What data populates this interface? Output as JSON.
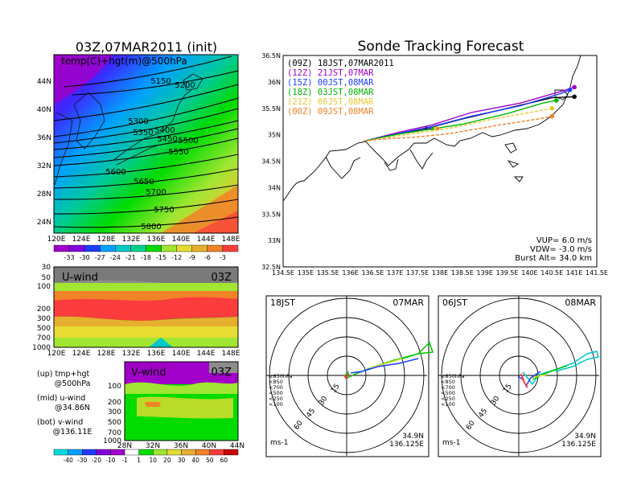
{
  "left": {
    "title": "03Z,07MAR2011 (init)",
    "map_label": "temp(C)+hgt(m)@500hPa",
    "contours": [
      "5150",
      "5200",
      "5300",
      "5350",
      "5400",
      "5450",
      "5500",
      "5550",
      "5600",
      "5650",
      "5700",
      "5750",
      "5800"
    ],
    "lat_ticks": [
      "44N",
      "40N",
      "36N",
      "32N",
      "28N",
      "24N"
    ],
    "lon_ticks": [
      "120E",
      "124E",
      "128E",
      "132E",
      "136E",
      "140E",
      "144E",
      "148E"
    ],
    "temp_scale": [
      "-33",
      "-30",
      "-27",
      "-24",
      "-21",
      "-18",
      "-15",
      "-12",
      "-9",
      "-6",
      "-3"
    ],
    "temp_colors": [
      "#a000c8",
      "#8200dc",
      "#1e3cff",
      "#00a0ff",
      "#00c8c8",
      "#00d28c",
      "#00dc00",
      "#a0e632",
      "#e6dc32",
      "#e6af2d",
      "#f08228",
      "#fa3c3c"
    ],
    "uwind": {
      "label": "U-wind",
      "time": "03Z",
      "p_ticks": [
        "30",
        "50",
        "100",
        "200",
        "300",
        "500",
        "700",
        "1000"
      ],
      "lon_ticks": [
        "120E",
        "124E",
        "128E",
        "132E",
        "136E",
        "140E",
        "144E",
        "148E"
      ]
    },
    "vwind": {
      "label": "V-wind",
      "time": "03Z",
      "p_ticks": [
        "100",
        "200",
        "300",
        "500",
        "700",
        "1000"
      ],
      "lat_ticks": [
        "28N",
        "32N",
        "36N",
        "40N",
        "44N"
      ]
    },
    "legend_notes": [
      "(up) tmp+hgt",
      "@500hPa",
      "(mid) u-wind",
      "@34.86N",
      "(bot) v-wind",
      "@136.11E"
    ],
    "wind_scale": [
      "-40",
      "-30",
      "-20",
      "-10",
      "-1",
      "1",
      "10",
      "20",
      "30",
      "40",
      "50",
      "60"
    ],
    "wind_colors": [
      "#00dcdc",
      "#00a0ff",
      "#1e3cff",
      "#8200dc",
      "#a000c8",
      "#ffffff",
      "#00dc00",
      "#a0e632",
      "#e6dc32",
      "#e6af2d",
      "#f08228",
      "#fa3c3c",
      "#c80000"
    ]
  },
  "right": {
    "title": "Sonde Tracking Forecast",
    "track_legend": [
      {
        "text": "(09Z)  18JST,07MAR2011",
        "color": "#000000"
      },
      {
        "text": "(12Z)  21JST,07MAR",
        "color": "#a000c8"
      },
      {
        "text": "(15Z)  00JST,08MAR",
        "color": "#1e3cff"
      },
      {
        "text": "(18Z)  03JST,08MAR",
        "color": "#00b400"
      },
      {
        "text": "(21Z)  06JST,08MAR",
        "color": "#e6c832"
      },
      {
        "text": "(00Z)  09JST,08MAR",
        "color": "#f08228"
      }
    ],
    "lat_ticks": [
      "36.5N",
      "36N",
      "35.5N",
      "35N",
      "34.5N",
      "34N",
      "33.5N",
      "33N",
      "32.5N"
    ],
    "lon_ticks": [
      "134.5E",
      "135E",
      "135.5E",
      "136E",
      "136.5E",
      "137E",
      "137.5E",
      "138E",
      "138.5E",
      "139E",
      "139.5E",
      "140E",
      "140.5E",
      "141E",
      "141.5E"
    ],
    "params": [
      "VUP=  6.0 m/s",
      "VDW= -3.0 m/s",
      "Burst Alt= 34.0 km"
    ],
    "polar_left": {
      "time": "18JST",
      "date": "07MAR",
      "unit": "ms-1",
      "lat": "34.9N",
      "lon": "136.125E",
      "rings": [
        "15",
        "30",
        "45",
        "60"
      ]
    },
    "polar_right": {
      "time": "06JST",
      "date": "08MAR",
      "unit": "ms-1",
      "lat": "34.9N",
      "lon": "136.125E",
      "rings": [
        "15",
        "30",
        "45",
        "60"
      ]
    },
    "polar_levels": [
      {
        "text": "≥850hPa",
        "color": "#fa3c3c"
      },
      {
        "text": "<850",
        "color": "#f0a028"
      },
      {
        "text": "<700",
        "color": "#e6dc32"
      },
      {
        "text": "<500",
        "color": "#00c800"
      },
      {
        "text": "<250",
        "color": "#00c8c8"
      },
      {
        "text": "<100",
        "color": "#1e3cff"
      }
    ]
  },
  "chart_data": [
    {
      "type": "heatmap",
      "title": "03Z,07MAR2011 (init)",
      "subtitle": "temp(C)+hgt(m)@500hPa",
      "x_range": [
        "120E",
        "150E"
      ],
      "y_range": [
        "22N",
        "47N"
      ],
      "contour_levels": [
        5150,
        5200,
        5300,
        5350,
        5400,
        5450,
        5500,
        5550,
        5600,
        5650,
        5700,
        5750,
        5800
      ],
      "color_scale": [
        -33,
        -30,
        -27,
        -24,
        -21,
        -18,
        -15,
        -12,
        -9,
        -6,
        -3
      ]
    },
    {
      "type": "heatmap",
      "series": [
        {
          "name": "U-wind"
        }
      ],
      "x_range": [
        "120E",
        "150E"
      ],
      "pressure_levels": [
        30,
        50,
        100,
        200,
        300,
        500,
        700,
        1000
      ]
    },
    {
      "type": "heatmap",
      "series": [
        {
          "name": "V-wind"
        }
      ],
      "x_range": [
        "28N",
        "44N"
      ],
      "pressure_levels": [
        100,
        200,
        300,
        500,
        700,
        1000
      ]
    },
    {
      "type": "line",
      "title": "Sonde Tracking Forecast",
      "xlim": [
        134.5,
        141.5
      ],
      "ylim": [
        32.5,
        36.5
      ],
      "series": [
        {
          "name": "(09Z) 18JST,07MAR2011",
          "x": [
            136.3,
            137.0,
            137.7,
            138.5,
            139.5,
            140.5,
            141.0
          ],
          "y": [
            34.88,
            35.0,
            35.12,
            35.3,
            35.5,
            35.7,
            35.72
          ]
        },
        {
          "name": "(12Z) 21JST,07MAR",
          "x": [
            136.3,
            137.1,
            137.8,
            138.7,
            139.8,
            140.7,
            141.0
          ],
          "y": [
            34.88,
            35.05,
            35.18,
            35.42,
            35.6,
            35.82,
            35.9
          ]
        },
        {
          "name": "(15Z) 00JST,08MAR",
          "x": [
            136.3,
            137.1,
            137.8,
            138.7,
            139.8,
            140.7,
            140.9
          ],
          "y": [
            34.88,
            35.03,
            35.15,
            35.35,
            35.55,
            35.78,
            35.85
          ]
        },
        {
          "name": "(18Z) 03JST,08MAR",
          "x": [
            136.3,
            137.0,
            137.6,
            138.5,
            139.5,
            140.3,
            140.6
          ],
          "y": [
            34.88,
            35.0,
            35.08,
            35.2,
            35.4,
            35.6,
            35.65
          ]
        },
        {
          "name": "(21Z) 06JST,08MAR",
          "x": [
            136.3,
            136.9,
            137.4,
            138.2,
            139.2,
            140.2,
            140.5
          ],
          "y": [
            34.88,
            34.96,
            35.02,
            35.12,
            35.3,
            35.45,
            35.5
          ]
        },
        {
          "name": "(00Z) 09JST,08MAR",
          "x": [
            136.3,
            136.9,
            137.4,
            138.2,
            139.3,
            140.2,
            140.5
          ],
          "y": [
            34.88,
            34.93,
            34.95,
            35.02,
            35.18,
            35.3,
            35.35
          ]
        }
      ]
    }
  ]
}
